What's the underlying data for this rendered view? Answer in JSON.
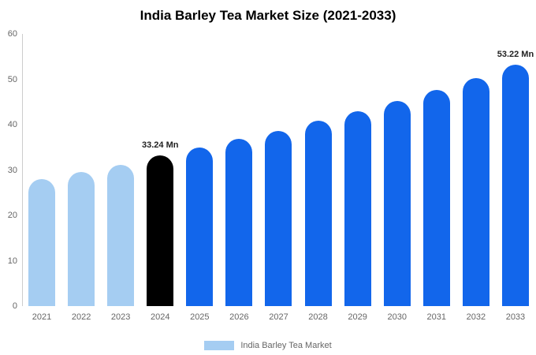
{
  "chart_data": {
    "type": "bar",
    "title": "India Barley Tea Market Size (2021-2033)",
    "categories": [
      "2021",
      "2022",
      "2023",
      "2024",
      "2025",
      "2026",
      "2027",
      "2028",
      "2029",
      "2030",
      "2031",
      "2032",
      "2033"
    ],
    "values": [
      28.0,
      29.6,
      31.1,
      33.24,
      35.0,
      36.8,
      38.7,
      40.8,
      43.0,
      45.3,
      47.7,
      50.3,
      53.22
    ],
    "colors": [
      "#a5cdf2",
      "#a5cdf2",
      "#a5cdf2",
      "#000000",
      "#1266eb",
      "#1266eb",
      "#1266eb",
      "#1266eb",
      "#1266eb",
      "#1266eb",
      "#1266eb",
      "#1266eb",
      "#1266eb"
    ],
    "annotations": [
      {
        "index": 3,
        "text": "33.24 Mn"
      },
      {
        "index": 12,
        "text": "53.22 Mn"
      }
    ],
    "ylim": [
      0,
      60
    ],
    "yticks": [
      0,
      10,
      20,
      30,
      40,
      50,
      60
    ],
    "xlabel": "",
    "ylabel": "",
    "grid": false,
    "legend_position": "bottom",
    "legend": [
      {
        "label": "India Barley Tea Market",
        "color": "#a5cdf2"
      }
    ]
  }
}
